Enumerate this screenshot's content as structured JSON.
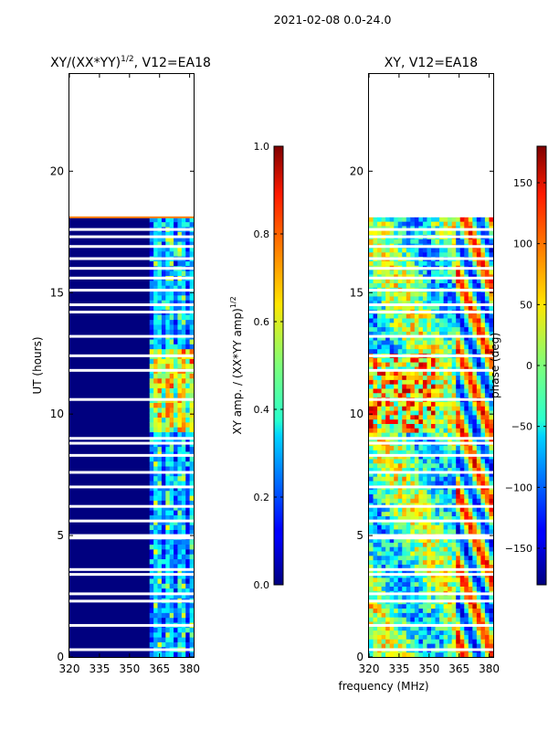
{
  "figure_title": "2021-02-08 0.0-24.0",
  "colors": {
    "amp_background": "#00007f",
    "amp_band": "#00d4ff",
    "amp_hot": "#ffd400",
    "phase_noise": "#40ffb0",
    "gap": "#ffffff"
  },
  "chart_data": [
    {
      "type": "heatmap",
      "title": "XY/(XX*YY)^{1/2}, V12=EA18",
      "title_main": "XY/(XX*YY)",
      "title_sup": "1/2",
      "title_tail": ", V12=EA18",
      "xlabel": "frequency (MHz)",
      "ylabel": "UT (hours)",
      "xlim": [
        320,
        382
      ],
      "ylim": [
        0,
        24
      ],
      "xticks": [
        "320",
        "335",
        "350",
        "365",
        "380"
      ],
      "xtick_values": [
        320,
        335,
        350,
        365,
        380
      ],
      "yticks": [
        "0",
        "5",
        "10",
        "15",
        "20"
      ],
      "ytick_values": [
        0,
        5,
        10,
        15,
        20
      ],
      "data_end_hour": 18.1,
      "bright_band_mhz": [
        360,
        382
      ],
      "bright_block_hours": [
        9.2,
        12.6
      ],
      "colorbar": {
        "label": "XY amp. / (XX*YY amp)^{1/2}",
        "label_main": "XY amp. / (XX*YY amp)",
        "label_sup": "1/2",
        "range": [
          0.0,
          1.0
        ],
        "ticks": [
          "0.0",
          "0.2",
          "0.4",
          "0.6",
          "0.8",
          "1.0"
        ],
        "tick_values": [
          0.0,
          0.2,
          0.4,
          0.6,
          0.8,
          1.0
        ]
      }
    },
    {
      "type": "heatmap",
      "title": "XY, V12=EA18",
      "xlabel": "frequency (MHz)",
      "ylabel": "",
      "xlim": [
        320,
        382
      ],
      "ylim": [
        0,
        24
      ],
      "xticks": [
        "320",
        "335",
        "350",
        "365",
        "380"
      ],
      "xtick_values": [
        320,
        335,
        350,
        365,
        380
      ],
      "yticks": [
        "0",
        "5",
        "10",
        "15",
        "20"
      ],
      "ytick_values": [
        0,
        5,
        10,
        15,
        20
      ],
      "data_end_hour": 18.1,
      "colorbar": {
        "label": "phase (deg)",
        "range": [
          -180,
          180
        ],
        "ticks": [
          "150",
          "100",
          "50",
          "0",
          "−50",
          "−100",
          "−150"
        ],
        "tick_values": [
          150,
          100,
          50,
          0,
          -50,
          -100,
          -150
        ]
      }
    }
  ],
  "gap_hours": [
    0.3,
    1.3,
    2.3,
    2.6,
    3.4,
    3.6,
    4.9,
    5.0,
    5.6,
    6.2,
    7.0,
    7.6,
    8.3,
    8.8,
    9.0,
    10.6,
    11.8,
    12.4,
    13.2,
    14.2,
    14.5,
    15.1,
    15.6,
    16.0,
    16.4,
    16.9,
    17.3,
    17.6
  ]
}
